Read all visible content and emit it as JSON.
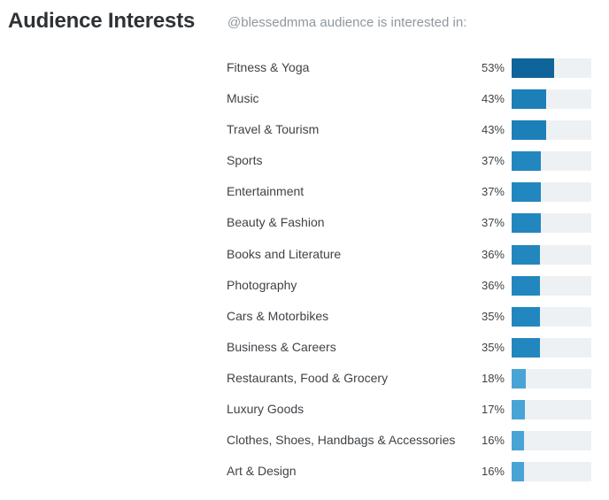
{
  "header": {
    "title": "Audience Interests",
    "subtitle": "@blessedmma audience is interested in:"
  },
  "colors": {
    "track": "#eef1f3",
    "bar_high": "#0f6499",
    "bar_mid": "#1d7fb8",
    "bar_base": "#2387bf",
    "bar_low": "#48a4d6"
  },
  "chart_data": {
    "type": "bar",
    "orientation": "horizontal",
    "title": "Audience Interests",
    "subtitle": "@blessedmma audience is interested in:",
    "xlim": [
      0,
      100
    ],
    "categories": [
      "Fitness & Yoga",
      "Music",
      "Travel & Tourism",
      "Sports",
      "Entertainment",
      "Beauty & Fashion",
      "Books and Literature",
      "Photography",
      "Cars & Motorbikes",
      "Business & Careers",
      "Restaurants, Food & Grocery",
      "Luxury Goods",
      "Clothes, Shoes, Handbags & Accessories",
      "Art & Design"
    ],
    "values": [
      53,
      43,
      43,
      37,
      37,
      37,
      36,
      36,
      35,
      35,
      18,
      17,
      16,
      16
    ],
    "labels": [
      "53%",
      "43%",
      "43%",
      "37%",
      "37%",
      "37%",
      "36%",
      "36%",
      "35%",
      "35%",
      "18%",
      "17%",
      "16%",
      "16%"
    ]
  }
}
